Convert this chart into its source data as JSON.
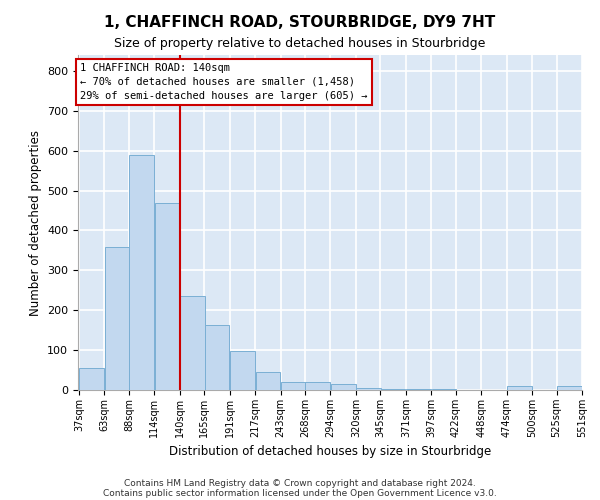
{
  "title": "1, CHAFFINCH ROAD, STOURBRIDGE, DY9 7HT",
  "subtitle": "Size of property relative to detached houses in Stourbridge",
  "xlabel": "Distribution of detached houses by size in Stourbridge",
  "ylabel": "Number of detached properties",
  "bar_color": "#c2d8ef",
  "bar_edge_color": "#7aafd4",
  "background_color": "#dce8f5",
  "grid_color": "#ffffff",
  "red_line_x": 140,
  "annotation_line1": "1 CHAFFINCH ROAD: 140sqm",
  "annotation_line2": "← 70% of detached houses are smaller (1,458)",
  "annotation_line3": "29% of semi-detached houses are larger (605) →",
  "annotation_box_color": "#ffffff",
  "annotation_box_edge": "#cc0000",
  "bins_left": [
    37,
    63,
    88,
    114,
    140,
    165,
    191,
    217,
    243,
    268,
    294,
    320,
    345,
    371,
    397,
    422,
    448,
    474,
    500,
    525
  ],
  "bin_width": 26,
  "values": [
    55,
    358,
    590,
    470,
    235,
    162,
    97,
    46,
    20,
    20,
    15,
    5,
    2,
    2,
    2,
    0,
    0,
    9,
    0,
    9
  ],
  "xlim_left": 37,
  "xlim_right": 551,
  "ylim_max": 840,
  "yticks": [
    0,
    100,
    200,
    300,
    400,
    500,
    600,
    700,
    800
  ],
  "footer_line1": "Contains HM Land Registry data © Crown copyright and database right 2024.",
  "footer_line2": "Contains public sector information licensed under the Open Government Licence v3.0."
}
